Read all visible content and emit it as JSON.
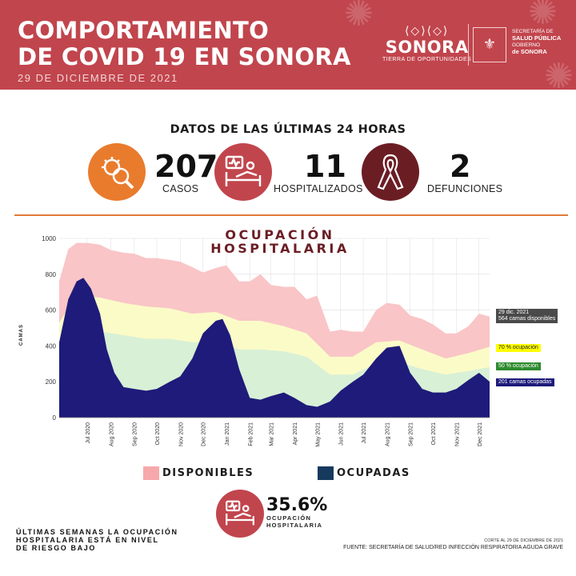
{
  "header": {
    "title_line1": "COMPORTAMIENTO",
    "title_line2": "DE COVID 19 EN SONORA",
    "date": "29 DE DICIEMBRE DE 2021",
    "brand_mark": "⟨◇⟩⟨◇⟩",
    "brand_name": "SONORA",
    "brand_tag": "TIERRA DE OPORTUNIDADES",
    "gov_line1": "SECRETARÍA DE",
    "gov_line2": "SALUD PÚBLICA",
    "gov_line3": "GOBIERNO",
    "gov_line4": "de SONORA",
    "color": "#c1454d"
  },
  "stats": {
    "title": "DATOS DE LAS ÚLTIMAS 24 HORAS",
    "cases": {
      "value": "207",
      "label": "CASOS",
      "icon": "virus-search-icon",
      "color": "#e97b2d"
    },
    "hospitalized": {
      "value": "11",
      "label": "HOSPITALIZADOS",
      "icon": "hospital-bed-icon",
      "color": "#c1454d"
    },
    "deaths": {
      "value": "2",
      "label": "DEFUNCIONES",
      "icon": "ribbon-icon",
      "color": "#6b1d24"
    }
  },
  "chart": {
    "title_line1": "OCUPACIÓN",
    "title_line2": "HOSPITALARIA",
    "ylabel": "CAMAS",
    "callouts": {
      "date": "29 dic. 2021",
      "available": "564 camas disponibles",
      "p70": "70 % ocupación",
      "p50": "50 % ocupación",
      "occupied": "201  camas ocupadas"
    },
    "legend": {
      "available": "DISPONIBLES",
      "occupied": "OCUPADAS"
    },
    "occupancy_pct": "35.6%",
    "occupancy_line1": "OCUPACIÓN",
    "occupancy_line2": "HOSPITALARIA"
  },
  "chart_data": {
    "type": "area",
    "title": "OCUPACIÓN HOSPITALARIA",
    "ylabel": "CAMAS",
    "ylim": [
      0,
      1000
    ],
    "yticks": [
      0,
      200,
      400,
      600,
      800,
      1000
    ],
    "xtick_labels": [
      "Jul 2020",
      "Aug 2020",
      "Sep 2020",
      "Oct 2020",
      "Nov 2020",
      "Dec 2020",
      "Jan 2021",
      "Feb 2021",
      "Mar 2021",
      "Apr 2021",
      "May 2021",
      "Jun 2021",
      "Jul 2021",
      "Aug 2021",
      "Sep 2021",
      "Oct 2021",
      "Nov 2021",
      "Dec 2021"
    ],
    "x_start": "2020-06-08",
    "x_end": "2021-12-29",
    "grid": true,
    "series": [
      {
        "name": "DISPONIBLES",
        "color": "#f9c5c7",
        "x": [
          "2020-06-08",
          "2020-06-20",
          "2020-07-01",
          "2020-07-15",
          "2020-08-01",
          "2020-08-15",
          "2020-09-01",
          "2020-09-15",
          "2020-10-01",
          "2020-10-15",
          "2020-11-01",
          "2020-11-15",
          "2020-12-01",
          "2020-12-15",
          "2021-01-01",
          "2021-01-15",
          "2021-02-01",
          "2021-02-15",
          "2021-03-01",
          "2021-03-15",
          "2021-04-01",
          "2021-04-15",
          "2021-05-01",
          "2021-05-15",
          "2021-06-01",
          "2021-06-15",
          "2021-07-01",
          "2021-07-15",
          "2021-08-01",
          "2021-08-15",
          "2021-09-01",
          "2021-09-15",
          "2021-10-01",
          "2021-10-15",
          "2021-11-01",
          "2021-11-15",
          "2021-12-01",
          "2021-12-15",
          "2021-12-29"
        ],
        "values": [
          760,
          940,
          975,
          975,
          965,
          935,
          920,
          915,
          890,
          890,
          880,
          870,
          840,
          810,
          835,
          850,
          760,
          760,
          800,
          740,
          730,
          730,
          660,
          680,
          480,
          490,
          480,
          480,
          600,
          640,
          630,
          570,
          550,
          520,
          470,
          470,
          510,
          580,
          564
        ]
      },
      {
        "name": "OCUPADAS",
        "color": "#1e1b7a",
        "x": [
          "2020-06-08",
          "2020-06-20",
          "2020-07-01",
          "2020-07-10",
          "2020-07-20",
          "2020-08-01",
          "2020-08-10",
          "2020-08-20",
          "2020-09-01",
          "2020-09-15",
          "2020-10-01",
          "2020-10-15",
          "2020-11-01",
          "2020-11-15",
          "2020-12-01",
          "2020-12-15",
          "2021-01-01",
          "2021-01-10",
          "2021-01-20",
          "2021-02-01",
          "2021-02-15",
          "2021-03-01",
          "2021-03-15",
          "2021-04-01",
          "2021-04-15",
          "2021-05-01",
          "2021-05-15",
          "2021-06-01",
          "2021-06-15",
          "2021-07-01",
          "2021-07-15",
          "2021-08-01",
          "2021-08-15",
          "2021-09-01",
          "2021-09-15",
          "2021-10-01",
          "2021-10-15",
          "2021-11-01",
          "2021-11-15",
          "2021-12-01",
          "2021-12-15",
          "2021-12-29"
        ],
        "values": [
          420,
          660,
          760,
          780,
          720,
          580,
          380,
          250,
          170,
          160,
          150,
          160,
          200,
          230,
          330,
          470,
          540,
          550,
          460,
          270,
          110,
          100,
          120,
          140,
          110,
          70,
          60,
          90,
          150,
          200,
          240,
          330,
          390,
          400,
          250,
          160,
          140,
          140,
          160,
          210,
          250,
          201
        ]
      },
      {
        "name": "70 % ocupación",
        "color": "#fbfbc8",
        "x": [
          "2020-06-08",
          "2020-07-01",
          "2020-08-01",
          "2020-09-01",
          "2020-10-01",
          "2020-11-01",
          "2020-12-01",
          "2021-01-01",
          "2021-02-01",
          "2021-03-01",
          "2021-04-01",
          "2021-05-01",
          "2021-06-01",
          "2021-07-01",
          "2021-08-01",
          "2021-09-01",
          "2021-10-01",
          "2021-11-01",
          "2021-12-01",
          "2021-12-29"
        ],
        "values": [
          530,
          680,
          670,
          640,
          620,
          610,
          580,
          590,
          540,
          540,
          510,
          470,
          340,
          340,
          420,
          430,
          380,
          330,
          360,
          395
        ]
      },
      {
        "name": "50 % ocupación",
        "color": "#d8f0d6",
        "x": [
          "2020-06-08",
          "2020-07-01",
          "2020-08-01",
          "2020-09-01",
          "2020-10-01",
          "2020-11-01",
          "2020-12-01",
          "2021-01-01",
          "2021-02-01",
          "2021-03-01",
          "2021-04-01",
          "2021-05-01",
          "2021-06-01",
          "2021-07-01",
          "2021-08-01",
          "2021-09-01",
          "2021-10-01",
          "2021-11-01",
          "2021-12-01",
          "2021-12-29"
        ],
        "values": [
          380,
          490,
          480,
          460,
          440,
          440,
          420,
          420,
          380,
          380,
          370,
          340,
          240,
          240,
          300,
          310,
          270,
          240,
          260,
          282
        ]
      }
    ]
  }
}
